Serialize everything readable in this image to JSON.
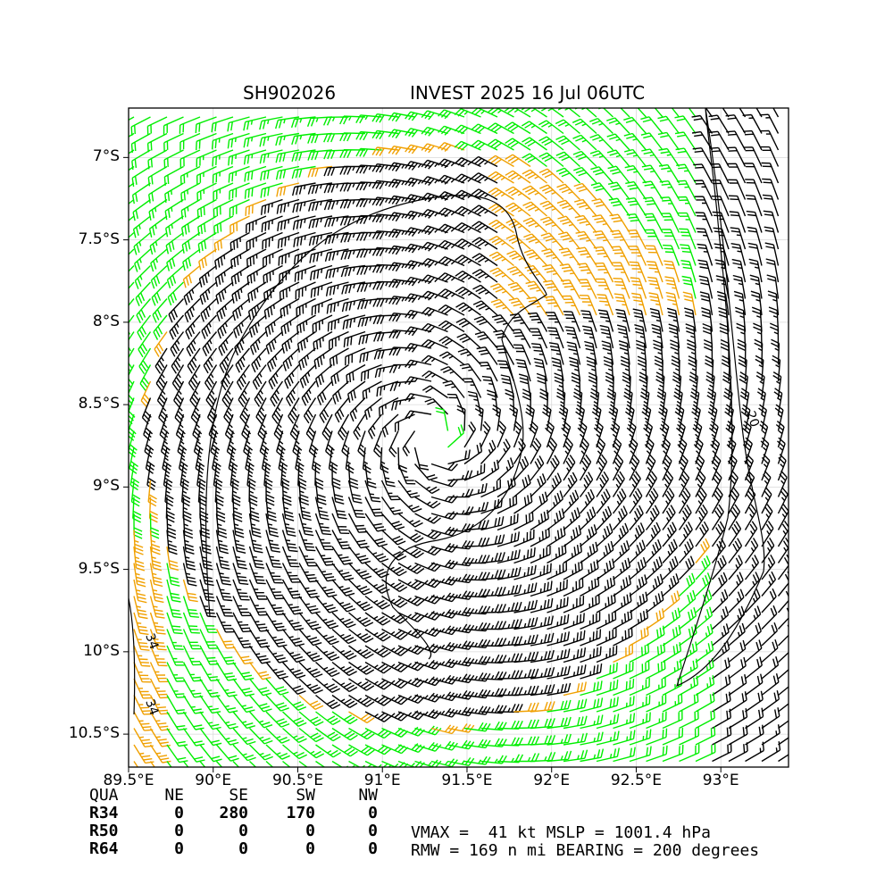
{
  "title": {
    "storm_id": "SH902026",
    "name_date": "INVEST 2025 16 Jul 06UTC"
  },
  "map": {
    "lon_range": [
      89.5,
      93.4
    ],
    "lat_range": [
      -10.7,
      -6.7
    ],
    "center": {
      "lon": 91.3,
      "lat": -8.7
    },
    "colors": {
      "barb_low": "#00ee00",
      "barb_high": "#f0a000",
      "barb_contour": "#000000",
      "frame": "#000000",
      "grid": "#d9d9d9"
    }
  },
  "axes": {
    "x_ticks": [
      {
        "value": 89.5,
        "label": "89.5°E"
      },
      {
        "value": 90.0,
        "label": "90°E"
      },
      {
        "value": 90.5,
        "label": "90.5°E"
      },
      {
        "value": 91.0,
        "label": "91°E"
      },
      {
        "value": 91.5,
        "label": "91.5°E"
      },
      {
        "value": 92.0,
        "label": "92°E"
      },
      {
        "value": 92.5,
        "label": "92.5°E"
      },
      {
        "value": 93.0,
        "label": "93°E"
      }
    ],
    "y_ticks": [
      {
        "value": -7.0,
        "label": "7°S"
      },
      {
        "value": -7.5,
        "label": "7.5°S"
      },
      {
        "value": -8.0,
        "label": "8°S"
      },
      {
        "value": -8.5,
        "label": "8.5°S"
      },
      {
        "value": -9.0,
        "label": "9°S"
      },
      {
        "value": -9.5,
        "label": "9.5°S"
      },
      {
        "value": -10.0,
        "label": "10°S"
      },
      {
        "value": -10.5,
        "label": "10.5°S"
      }
    ]
  },
  "contour_labels": [
    {
      "text": "34",
      "lon": 89.6,
      "lat": -9.9
    },
    {
      "text": "34",
      "lon": 89.6,
      "lat": -10.3
    },
    {
      "text": "20",
      "lon": 93.15,
      "lat": -8.55
    }
  ],
  "quadrant_table": {
    "header": [
      "QUA",
      "NE",
      "SE",
      "SW",
      "NW"
    ],
    "rows": [
      [
        "R34",
        "0",
        "280",
        "170",
        "0"
      ],
      [
        "R50",
        "0",
        "0",
        "0",
        "0"
      ],
      [
        "R64",
        "0",
        "0",
        "0",
        "0"
      ]
    ]
  },
  "summary": {
    "line1": "VMAX =  41 kt MSLP = 1001.4 hPa",
    "line2": "RMW = 169 n mi BEARING = 200 degrees"
  }
}
